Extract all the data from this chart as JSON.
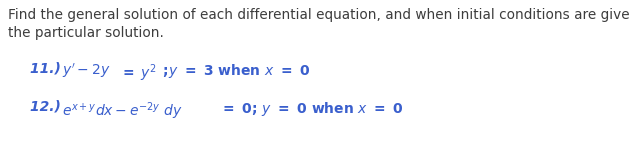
{
  "background_color": "#ffffff",
  "text_color_dark": "#3d3d3d",
  "text_color_blue": "#3a5fcd",
  "text_color_blue_bold": "#2244aa",
  "header_line1": "Find the general solution of each differential equation, and when initial conditions are given,",
  "header_line2": "the particular solution.",
  "figsize": [
    6.29,
    1.42
  ],
  "dpi": 100,
  "header_fs": 9.8,
  "eq_fs": 10.0
}
